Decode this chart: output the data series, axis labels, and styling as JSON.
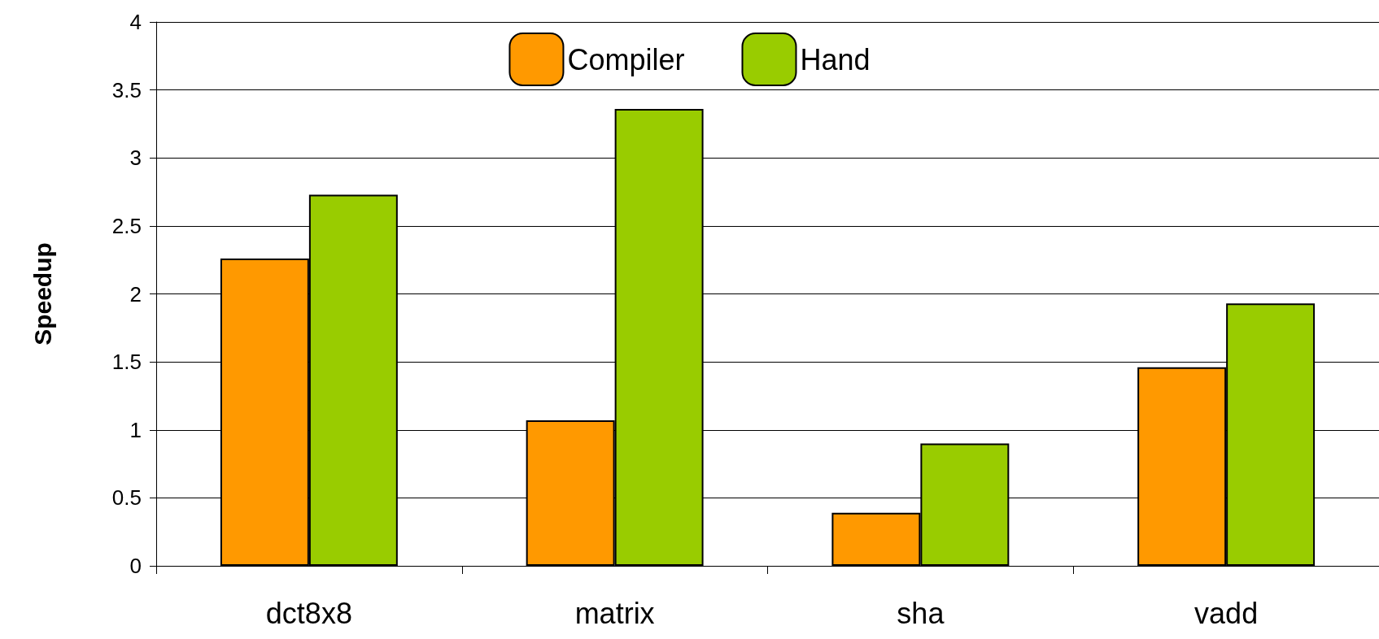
{
  "chart_data": {
    "type": "bar",
    "ylabel": "Speedup",
    "categories": [
      "dct8x8",
      "matrix",
      "sha",
      "vadd"
    ],
    "series": [
      {
        "name": "Compiler",
        "color": "#ff9900",
        "values": [
          2.26,
          1.07,
          0.39,
          1.46
        ]
      },
      {
        "name": "Hand",
        "color": "#99cc00",
        "values": [
          2.73,
          3.36,
          0.9,
          1.93
        ]
      }
    ],
    "ylim": [
      0,
      4
    ],
    "yticks": [
      0,
      0.5,
      1,
      1.5,
      2,
      2.5,
      3,
      3.5,
      4
    ],
    "grid": "y",
    "legend": "top"
  }
}
